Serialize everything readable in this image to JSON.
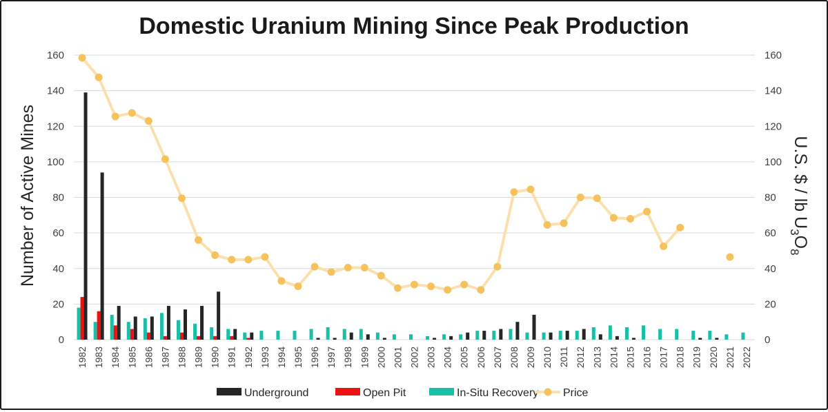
{
  "chart_data": {
    "type": "bar",
    "title": "Domestic Uranium Mining Since Peak Production",
    "ylabel": "Number of Active Mines",
    "y2label": "U.S. $ / lb U3O8",
    "ylim": [
      0,
      160
    ],
    "y2lim": [
      0,
      160
    ],
    "y_ticks": [
      "0",
      "20",
      "40",
      "60",
      "80",
      "100",
      "120",
      "140",
      "160"
    ],
    "grid": true,
    "legend_position": "bottom",
    "categories": [
      "1982",
      "1983",
      "1984",
      "1985",
      "1986",
      "1987",
      "1988",
      "1989",
      "1990",
      "1991",
      "1992",
      "1993",
      "1994",
      "1995",
      "1996",
      "1997",
      "1998",
      "1999",
      "2000",
      "2001",
      "2002",
      "2003",
      "2004",
      "2005",
      "2006",
      "2007",
      "2008",
      "2009",
      "2010",
      "2011",
      "2012",
      "2013",
      "2014",
      "2015",
      "2016",
      "2017",
      "2018",
      "2019",
      "2020",
      "2021",
      "2022"
    ],
    "series": [
      {
        "name": "Underground",
        "kind": "bar",
        "color": "#262626",
        "values": [
          139,
          94,
          19,
          13,
          13,
          19,
          17,
          19,
          27,
          6,
          4,
          0,
          0,
          0,
          1,
          1,
          4,
          3,
          1,
          0,
          0,
          1,
          2,
          4,
          5,
          6,
          10,
          14,
          4,
          5,
          6,
          3,
          2,
          1,
          0,
          0,
          0,
          1,
          1,
          0,
          0
        ]
      },
      {
        "name": "Open Pit",
        "kind": "bar",
        "color": "#ee1111",
        "values": [
          24,
          16,
          8,
          6,
          4,
          2,
          4,
          2,
          2,
          2,
          1,
          0,
          0,
          0,
          0,
          0,
          0,
          0,
          0,
          0,
          0,
          0,
          0,
          0,
          0,
          0,
          0,
          0,
          0,
          0,
          0,
          0,
          0,
          0,
          0,
          0,
          0,
          0,
          0,
          0,
          0
        ]
      },
      {
        "name": "In-Situ Recovery",
        "kind": "bar",
        "color": "#1bbfa8",
        "values": [
          18,
          10,
          14,
          10,
          12,
          15,
          11,
          9,
          7,
          6,
          4,
          5,
          5,
          5,
          6,
          7,
          6,
          6,
          4,
          3,
          3,
          2,
          3,
          3,
          5,
          5,
          6,
          4,
          4,
          5,
          5,
          7,
          8,
          7,
          8,
          6,
          6,
          5,
          5,
          3,
          4
        ]
      },
      {
        "name": "Price",
        "kind": "line",
        "axis": "right",
        "color": "#f5c35e",
        "line_color": "#fbe0ae",
        "values": [
          158.5,
          147.5,
          125.5,
          127.5,
          123,
          101.5,
          79.5,
          56,
          47.5,
          45,
          45,
          46.5,
          33,
          30,
          41,
          38,
          40.5,
          40.5,
          36,
          29,
          31,
          30,
          28,
          31,
          28,
          41,
          83,
          84.5,
          64.5,
          65.5,
          80,
          79.5,
          68.5,
          68,
          72,
          52.5,
          63,
          null,
          null,
          46.5,
          null
        ]
      }
    ]
  },
  "legend": [
    {
      "label": "Underground",
      "color": "#262626",
      "shape": "box"
    },
    {
      "label": "Open Pit",
      "color": "#ee1111",
      "shape": "box"
    },
    {
      "label": "In-Situ Recovery",
      "color": "#1bbfa8",
      "shape": "box"
    },
    {
      "label": "Price",
      "color": "#f5c35e",
      "line_color": "#fbe0ae",
      "shape": "line-marker"
    }
  ],
  "y2label_parts": {
    "pre": "U.S. $ / lb U",
    "sub1": "3",
    "mid": "O",
    "sub2": "8"
  }
}
